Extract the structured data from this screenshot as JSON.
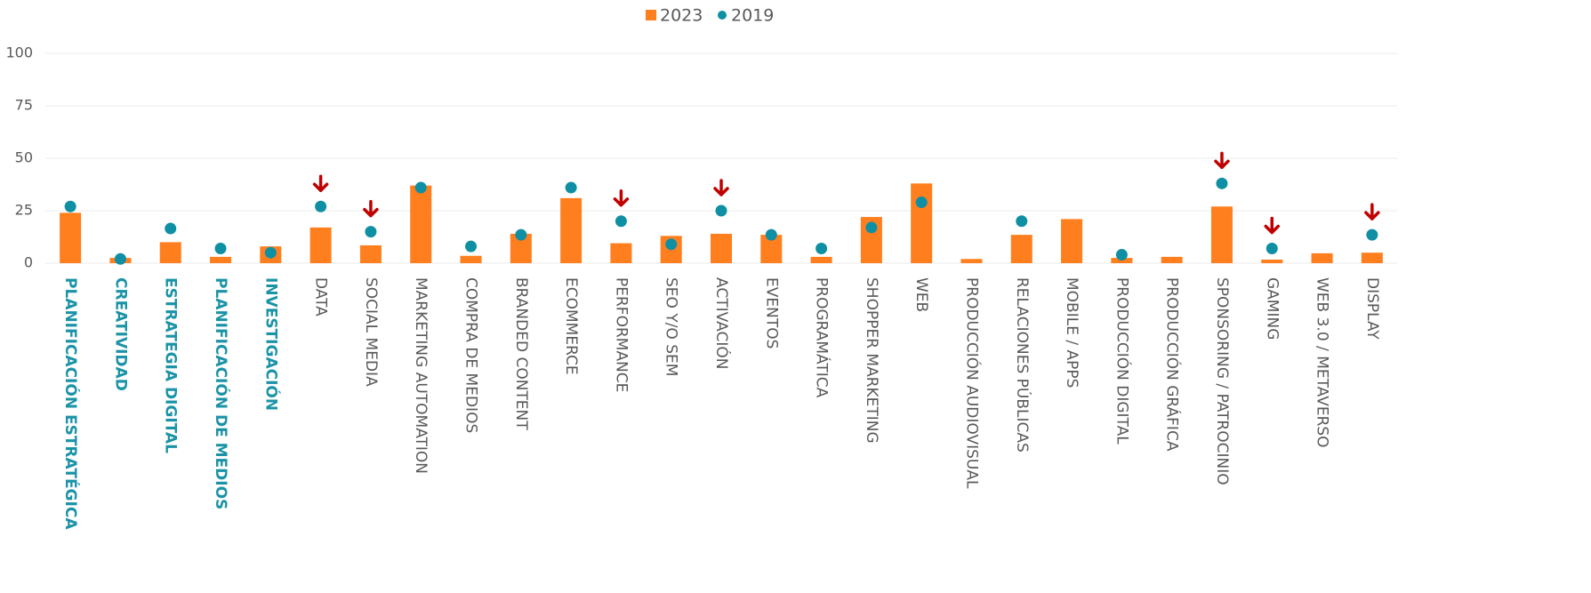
{
  "chart_data": {
    "type": "bar",
    "categories": [
      "PLANIFICACIÓN ESTRATÉGICA",
      "CREATIVIDAD",
      "ESTRATEGIA DIGITAL",
      "PLANIFICACIÓN DE MEDIOS",
      "INVESTIGACIÓN",
      "DATA",
      "SOCIAL MEDIA",
      "MARKETING AUTOMATION",
      "COMPRA DE MEDIOS",
      "BRANDED CONTENT",
      "ECOMMERCE",
      "PERFORMANCE",
      "SEO Y/O SEM",
      "ACTIVACIÓN",
      "EVENTOS",
      "PROGRAMÁTICA",
      "SHOPPER MARKETING",
      "WEB",
      "PRODUCCIÓN AUDIOVISUAL",
      "RELACIONES PÚBLICAS",
      "MOBILE / APPS",
      "PRODUCCIÓN DIGITAL",
      "PRODUCCIÓN GRÁFICA",
      "SPONSORING / PATROCINIO",
      "GAMING",
      "WEB 3.0 / METAVERSO",
      "DISPLAY"
    ],
    "series": [
      {
        "name": "2023",
        "color": "#ff7f1e",
        "mark": "bar",
        "values": [
          24,
          2.5,
          10,
          3,
          8,
          17,
          8.5,
          37,
          3.5,
          14,
          31,
          9.5,
          13,
          14,
          13.5,
          3,
          22,
          38,
          2,
          13.5,
          21,
          2.5,
          3,
          27,
          1.7,
          4.7,
          5
        ]
      },
      {
        "name": "2019",
        "color": "#0e8fa3",
        "mark": "dot",
        "values": [
          27,
          2,
          16.5,
          7,
          5,
          27,
          15,
          36,
          8,
          13.5,
          36,
          20,
          9,
          25,
          13.5,
          7,
          17,
          29,
          null,
          20,
          null,
          4,
          null,
          38,
          7,
          null,
          13.5
        ]
      }
    ],
    "ylim": [
      0,
      100
    ],
    "yticks": [
      0,
      25,
      50,
      75,
      100
    ],
    "grid": true,
    "legend": "top",
    "highlighted_categories": [
      "PLANIFICACIÓN ESTRATÉGICA",
      "CREATIVIDAD",
      "ESTRATEGIA DIGITAL",
      "PLANIFICACIÓN DE MEDIOS",
      "INVESTIGACIÓN"
    ],
    "highlight_color": "#1a93a6",
    "arrow_categories": [
      "DATA",
      "SOCIAL MEDIA",
      "PERFORMANCE",
      "ACTIVACIÓN",
      "SPONSORING / PATROCINIO",
      "GAMING",
      "DISPLAY"
    ],
    "arrow_color": "#c00000"
  }
}
